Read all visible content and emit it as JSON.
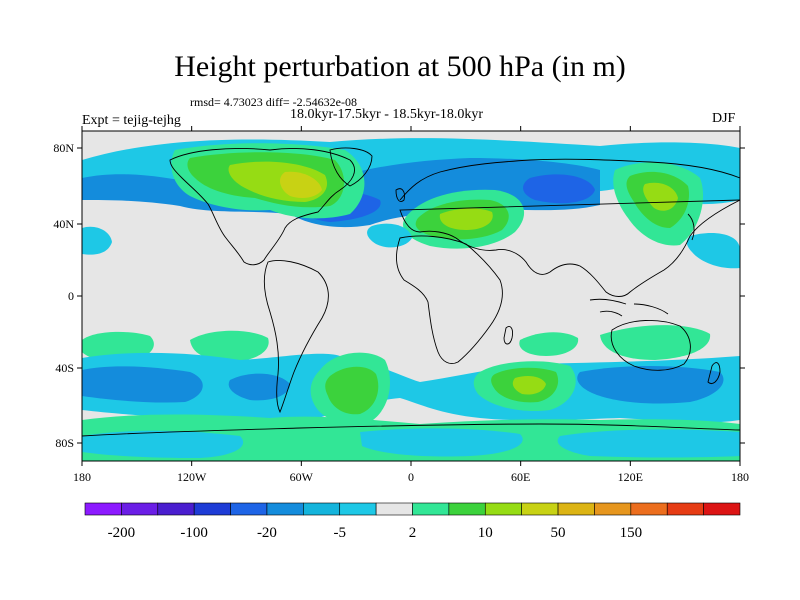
{
  "title": "Height perturbation at 500 hPa (in m)",
  "stats_text": "rmsd= 4.73023 diff= -2.54632e-08",
  "period_text": "18.0kyr-17.5kyr - 18.5kyr-18.0kyr",
  "experiment_text": "Expt = tejig-tejhg",
  "season": "DJF",
  "lat_ticks": [
    "80N",
    "40N",
    "0",
    "40S",
    "80S"
  ],
  "lon_ticks": [
    "180",
    "120W",
    "60W",
    "0",
    "60E",
    "120E",
    "180"
  ],
  "colorbar": {
    "colors": [
      "#8c1aff",
      "#6b1ee6",
      "#4a1ecf",
      "#1e3cd6",
      "#1e64e6",
      "#148cdc",
      "#14b4dc",
      "#1ec8e6",
      "#e6e6e6",
      "#32e696",
      "#3cd23c",
      "#96dc14",
      "#c8d214",
      "#dcb414",
      "#e6961e",
      "#ec6e1e",
      "#e63c14",
      "#dc1414"
    ],
    "labels": [
      "-200",
      "-100",
      "-20",
      "-5",
      "2",
      "10",
      "50",
      "150"
    ]
  },
  "map": {
    "neutral_color": "#e6e6e6",
    "coast_color": "#000000"
  }
}
